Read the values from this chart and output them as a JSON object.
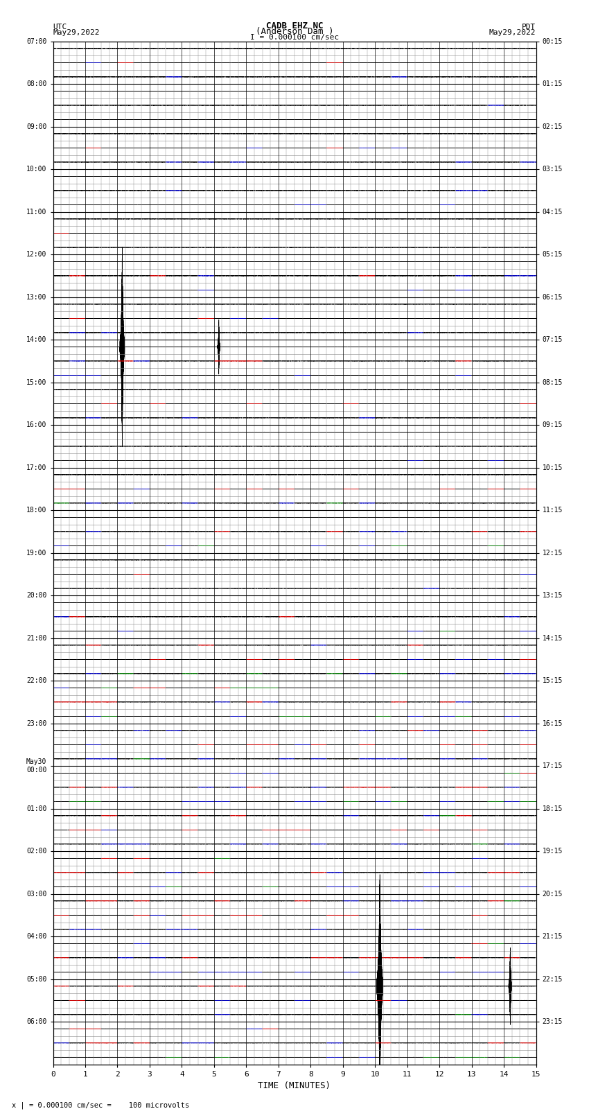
{
  "title_line1": "CADB EHZ NC",
  "title_line2": "(Anderson Dam )",
  "title_line3": "I = 0.000100 cm/sec",
  "left_header_line1": "UTC",
  "left_header_line2": "May29,2022",
  "right_header_line1": "PDT",
  "right_header_line2": "May29,2022",
  "footer_note": "x | = 0.000100 cm/sec =    100 microvolts",
  "xlabel": "TIME (MINUTES)",
  "left_times": [
    "07:00",
    "08:00",
    "09:00",
    "10:00",
    "11:00",
    "12:00",
    "13:00",
    "14:00",
    "15:00",
    "16:00",
    "17:00",
    "18:00",
    "19:00",
    "20:00",
    "21:00",
    "22:00",
    "23:00",
    "May30\n00:00",
    "01:00",
    "02:00",
    "03:00",
    "04:00",
    "05:00",
    "06:00"
  ],
  "right_times": [
    "00:15",
    "01:15",
    "02:15",
    "03:15",
    "04:15",
    "05:15",
    "06:15",
    "07:15",
    "08:15",
    "09:15",
    "10:15",
    "11:15",
    "12:15",
    "13:15",
    "14:15",
    "15:15",
    "16:15",
    "17:15",
    "18:15",
    "19:15",
    "20:15",
    "21:15",
    "22:15",
    "23:15"
  ],
  "n_rows": 24,
  "n_subrows": 3,
  "n_minutes": 15,
  "sample_rate": 100,
  "background_color": "#ffffff",
  "trace_color_normal": "#000000",
  "trace_color_red": "#cc0000",
  "trace_color_blue": "#0000bb",
  "trace_color_green": "#007700",
  "grid_major_color": "#000000",
  "grid_minor_color": "#888888",
  "event1_row": 7,
  "event1_subrow": 0,
  "event1_minute": 2.15,
  "event1_amplitude": 18.0,
  "event2_row": 7,
  "event2_subrow": 0,
  "event2_minute": 5.15,
  "event2_amplitude": 5.0,
  "event3_row": 22,
  "event3_subrow": 0,
  "event3_minute": 10.15,
  "event3_amplitude": 20.0,
  "event4_row": 22,
  "event4_subrow": 0,
  "event4_minute": 14.2,
  "event4_amplitude": 7.0
}
